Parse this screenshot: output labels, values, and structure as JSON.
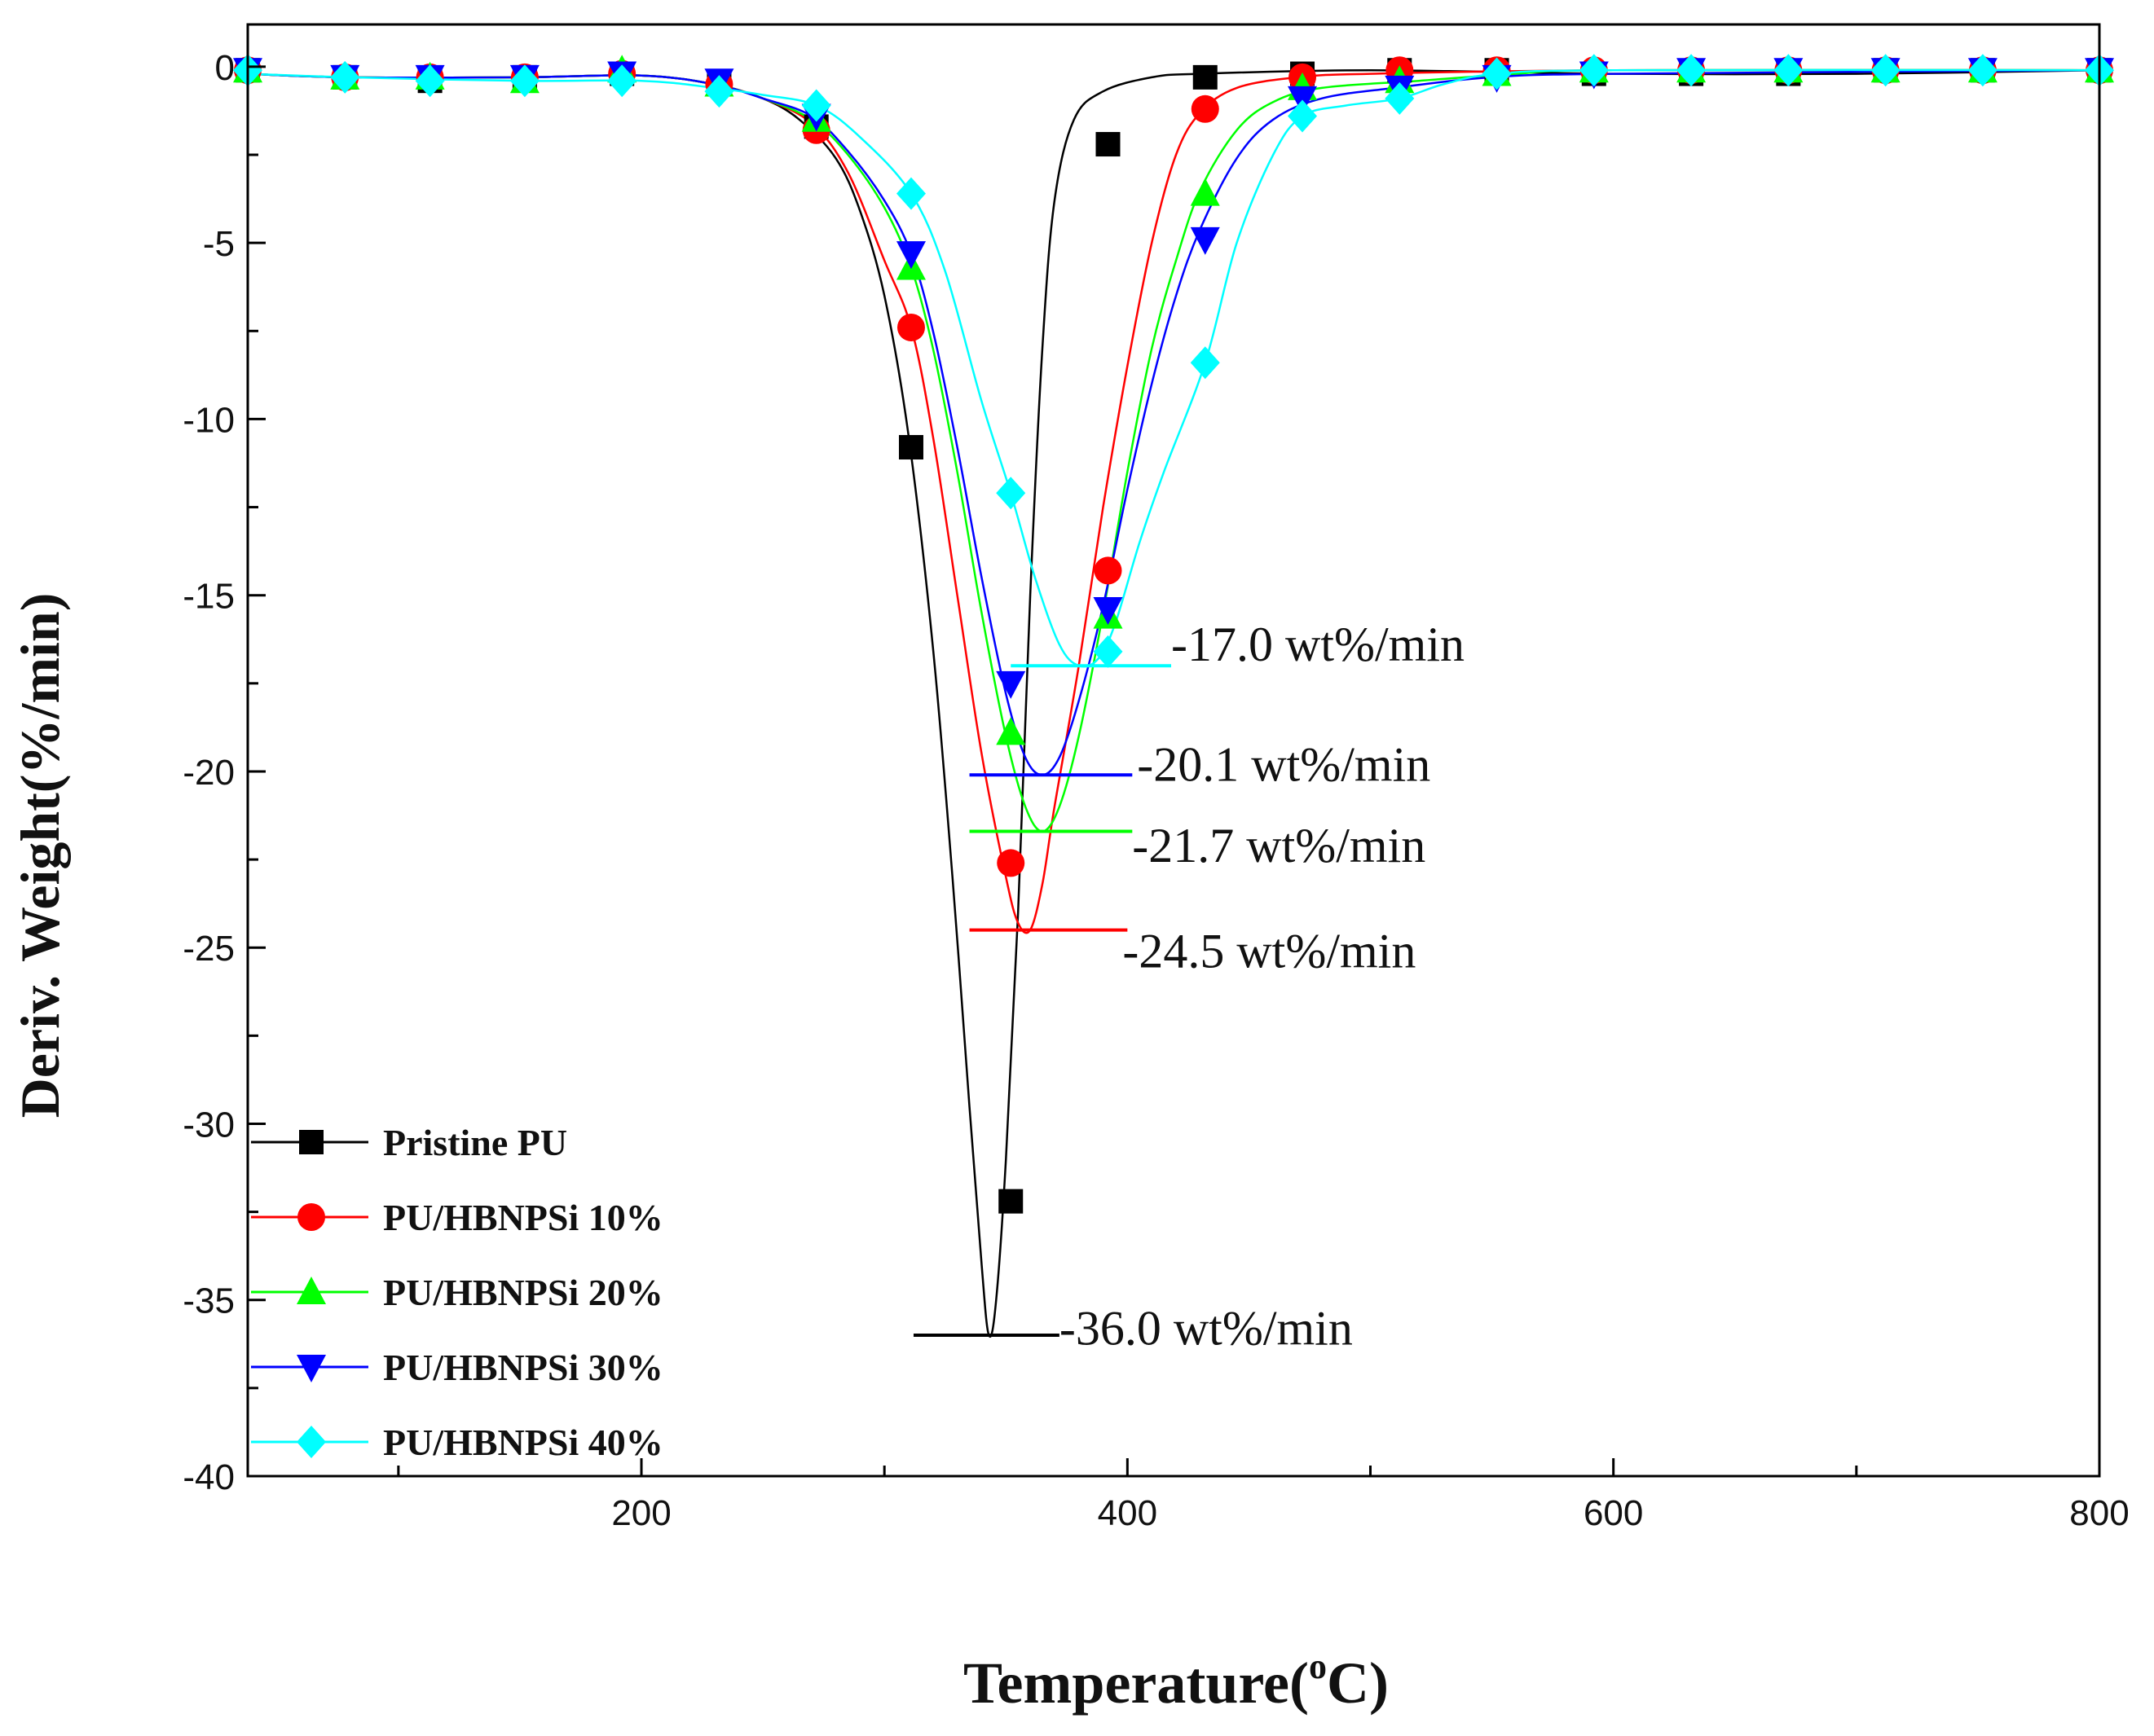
{
  "chart_data": {
    "type": "line",
    "xlabel": "Temperature(",
    "xlabel_sup": "o",
    "xlabel_unit": "C)",
    "ylabel": "Deriv. Weight(%/min)",
    "xlim": [
      38,
      800
    ],
    "ylim": [
      -40,
      1.2
    ],
    "x_ticks": [
      200,
      400,
      600,
      800
    ],
    "y_ticks": [
      0,
      -5,
      -10,
      -15,
      -20,
      -25,
      -30,
      -35,
      -40
    ],
    "x_tick_labels": [
      "200",
      "400",
      "600",
      "800"
    ],
    "y_tick_labels": [
      "0",
      "-5",
      "-10",
      "-15",
      "-20",
      "-25",
      "-30",
      "-35",
      "-40"
    ],
    "legend_position": "bottom-left",
    "series": [
      {
        "name": "Pristine PU",
        "color": "#000000",
        "marker": "square",
        "peak": {
          "x": 343,
          "y": -36.0
        },
        "curve": [
          [
            38,
            -0.2
          ],
          [
            80,
            -0.3
          ],
          [
            150,
            -0.3
          ],
          [
            200,
            -0.25
          ],
          [
            230,
            -0.5
          ],
          [
            250,
            -0.9
          ],
          [
            265,
            -1.5
          ],
          [
            280,
            -2.6
          ],
          [
            290,
            -4.1
          ],
          [
            300,
            -6.5
          ],
          [
            310,
            -10.5
          ],
          [
            320,
            -16.5
          ],
          [
            328,
            -23
          ],
          [
            335,
            -29.5
          ],
          [
            340,
            -34
          ],
          [
            343,
            -36
          ],
          [
            346,
            -35
          ],
          [
            350,
            -31
          ],
          [
            355,
            -24
          ],
          [
            360,
            -15
          ],
          [
            365,
            -8
          ],
          [
            370,
            -3.8
          ],
          [
            378,
            -1.5
          ],
          [
            390,
            -0.7
          ],
          [
            410,
            -0.3
          ],
          [
            430,
            -0.2
          ],
          [
            500,
            -0.1
          ],
          [
            600,
            -0.2
          ],
          [
            700,
            -0.2
          ],
          [
            800,
            -0.1
          ]
        ],
        "points": [
          [
            38,
            -0.1
          ],
          [
            78,
            -0.3
          ],
          [
            113,
            -0.4
          ],
          [
            152,
            -0.3
          ],
          [
            192,
            -0.2
          ],
          [
            232,
            -0.5
          ],
          [
            272,
            -1.7
          ],
          [
            311,
            -10.8
          ],
          [
            352,
            -32.2
          ],
          [
            392,
            -2.2
          ],
          [
            432,
            -0.3
          ],
          [
            472,
            -0.2
          ],
          [
            512,
            -0.1
          ],
          [
            552,
            -0.1
          ],
          [
            592,
            -0.2
          ],
          [
            632,
            -0.2
          ],
          [
            672,
            -0.2
          ],
          [
            712,
            -0.1
          ],
          [
            752,
            -0.1
          ],
          [
            800,
            -0.1
          ]
        ]
      },
      {
        "name": "PU/HBNPSi 10%",
        "color": "#ff0000",
        "marker": "circle",
        "peak": {
          "x": 360,
          "y": -24.5
        },
        "curve": [
          [
            38,
            -0.2
          ],
          [
            80,
            -0.3
          ],
          [
            150,
            -0.3
          ],
          [
            200,
            -0.25
          ],
          [
            230,
            -0.5
          ],
          [
            250,
            -0.9
          ],
          [
            270,
            -1.6
          ],
          [
            285,
            -3
          ],
          [
            300,
            -5.5
          ],
          [
            311,
            -7.4
          ],
          [
            320,
            -10.5
          ],
          [
            330,
            -15
          ],
          [
            340,
            -19.5
          ],
          [
            350,
            -23
          ],
          [
            355,
            -24.3
          ],
          [
            360,
            -24.5
          ],
          [
            365,
            -23.2
          ],
          [
            370,
            -21
          ],
          [
            380,
            -17
          ],
          [
            390,
            -12.5
          ],
          [
            400,
            -8.5
          ],
          [
            410,
            -5
          ],
          [
            420,
            -2.5
          ],
          [
            430,
            -1.3
          ],
          [
            445,
            -0.6
          ],
          [
            470,
            -0.3
          ],
          [
            500,
            -0.2
          ],
          [
            600,
            -0.1
          ],
          [
            800,
            -0.1
          ]
        ],
        "points": [
          [
            38,
            -0.1
          ],
          [
            78,
            -0.3
          ],
          [
            113,
            -0.3
          ],
          [
            152,
            -0.3
          ],
          [
            192,
            -0.2
          ],
          [
            232,
            -0.5
          ],
          [
            272,
            -1.8
          ],
          [
            311,
            -7.4
          ],
          [
            352,
            -22.6
          ],
          [
            392,
            -14.3
          ],
          [
            432,
            -1.2
          ],
          [
            472,
            -0.3
          ],
          [
            512,
            -0.1
          ],
          [
            552,
            -0.1
          ],
          [
            592,
            -0.1
          ],
          [
            632,
            -0.1
          ],
          [
            672,
            -0.1
          ],
          [
            712,
            -0.1
          ],
          [
            752,
            -0.1
          ],
          [
            800,
            -0.1
          ]
        ]
      },
      {
        "name": "PU/HBNPSi 20%",
        "color": "#00ff00",
        "marker": "triangle-up",
        "peak": {
          "x": 365,
          "y": -21.7
        },
        "curve": [
          [
            38,
            -0.2
          ],
          [
            80,
            -0.3
          ],
          [
            150,
            -0.3
          ],
          [
            200,
            -0.25
          ],
          [
            230,
            -0.5
          ],
          [
            250,
            -0.9
          ],
          [
            270,
            -1.5
          ],
          [
            285,
            -2.5
          ],
          [
            300,
            -4
          ],
          [
            311,
            -5.7
          ],
          [
            320,
            -8
          ],
          [
            330,
            -11.5
          ],
          [
            340,
            -15.5
          ],
          [
            350,
            -19
          ],
          [
            358,
            -21
          ],
          [
            365,
            -21.7
          ],
          [
            372,
            -21
          ],
          [
            380,
            -19
          ],
          [
            390,
            -15.5
          ],
          [
            400,
            -11.5
          ],
          [
            410,
            -8
          ],
          [
            420,
            -5.5
          ],
          [
            430,
            -3.5
          ],
          [
            445,
            -1.8
          ],
          [
            460,
            -1
          ],
          [
            480,
            -0.6
          ],
          [
            520,
            -0.4
          ],
          [
            560,
            -0.2
          ],
          [
            600,
            -0.1
          ],
          [
            800,
            -0.1
          ]
        ],
        "points": [
          [
            38,
            -0.1
          ],
          [
            78,
            -0.3
          ],
          [
            113,
            -0.3
          ],
          [
            152,
            -0.4
          ],
          [
            192,
            -0.1
          ],
          [
            232,
            -0.5
          ],
          [
            272,
            -1.5
          ],
          [
            311,
            -5.7
          ],
          [
            352,
            -18.9
          ],
          [
            392,
            -15.6
          ],
          [
            432,
            -3.6
          ],
          [
            472,
            -0.6
          ],
          [
            512,
            -0.4
          ],
          [
            552,
            -0.2
          ],
          [
            592,
            -0.1
          ],
          [
            632,
            -0.1
          ],
          [
            672,
            -0.1
          ],
          [
            712,
            -0.1
          ],
          [
            752,
            -0.1
          ],
          [
            800,
            -0.1
          ]
        ]
      },
      {
        "name": "PU/HBNPSi 30%",
        "color": "#0000ff",
        "marker": "triangle-down",
        "peak": {
          "x": 365,
          "y": -20.1
        },
        "curve": [
          [
            38,
            -0.2
          ],
          [
            80,
            -0.3
          ],
          [
            150,
            -0.3
          ],
          [
            200,
            -0.25
          ],
          [
            230,
            -0.5
          ],
          [
            250,
            -0.9
          ],
          [
            270,
            -1.4
          ],
          [
            285,
            -2.4
          ],
          [
            300,
            -3.8
          ],
          [
            311,
            -5.3
          ],
          [
            320,
            -7.5
          ],
          [
            330,
            -10.8
          ],
          [
            340,
            -14.5
          ],
          [
            350,
            -17.8
          ],
          [
            358,
            -19.6
          ],
          [
            365,
            -20.1
          ],
          [
            372,
            -19.6
          ],
          [
            380,
            -18
          ],
          [
            390,
            -15.3
          ],
          [
            400,
            -12
          ],
          [
            410,
            -9
          ],
          [
            420,
            -6.5
          ],
          [
            430,
            -4.6
          ],
          [
            445,
            -2.6
          ],
          [
            460,
            -1.5
          ],
          [
            480,
            -0.9
          ],
          [
            510,
            -0.6
          ],
          [
            550,
            -0.3
          ],
          [
            600,
            -0.2
          ],
          [
            800,
            -0.1
          ]
        ],
        "points": [
          [
            38,
            -0.1
          ],
          [
            78,
            -0.3
          ],
          [
            113,
            -0.3
          ],
          [
            152,
            -0.3
          ],
          [
            192,
            -0.2
          ],
          [
            232,
            -0.4
          ],
          [
            272,
            -1.4
          ],
          [
            311,
            -5.3
          ],
          [
            352,
            -17.5
          ],
          [
            392,
            -15.4
          ],
          [
            432,
            -4.9
          ],
          [
            472,
            -0.9
          ],
          [
            512,
            -0.6
          ],
          [
            552,
            -0.3
          ],
          [
            592,
            -0.2
          ],
          [
            632,
            -0.1
          ],
          [
            672,
            -0.1
          ],
          [
            712,
            -0.1
          ],
          [
            752,
            -0.1
          ],
          [
            800,
            -0.1
          ]
        ]
      },
      {
        "name": "PU/HBNPSi 40%",
        "color": "#00ffff",
        "marker": "diamond",
        "peak": {
          "x": 380,
          "y": -17.0
        },
        "curve": [
          [
            38,
            -0.2
          ],
          [
            80,
            -0.3
          ],
          [
            150,
            -0.4
          ],
          [
            200,
            -0.4
          ],
          [
            230,
            -0.6
          ],
          [
            250,
            -0.8
          ],
          [
            272,
            -1.1
          ],
          [
            290,
            -2
          ],
          [
            311,
            -3.6
          ],
          [
            325,
            -5.8
          ],
          [
            340,
            -9.5
          ],
          [
            352,
            -12.1
          ],
          [
            362,
            -14.5
          ],
          [
            372,
            -16.4
          ],
          [
            380,
            -17
          ],
          [
            388,
            -16.8
          ],
          [
            395,
            -15.8
          ],
          [
            405,
            -13.5
          ],
          [
            415,
            -11.5
          ],
          [
            432,
            -8.4
          ],
          [
            445,
            -5
          ],
          [
            460,
            -2.5
          ],
          [
            472,
            -1.4
          ],
          [
            490,
            -1.1
          ],
          [
            512,
            -0.9
          ],
          [
            530,
            -0.5
          ],
          [
            552,
            -0.2
          ],
          [
            600,
            -0.1
          ],
          [
            800,
            -0.1
          ]
        ],
        "points": [
          [
            38,
            -0.1
          ],
          [
            78,
            -0.3
          ],
          [
            113,
            -0.4
          ],
          [
            152,
            -0.4
          ],
          [
            192,
            -0.4
          ],
          [
            232,
            -0.7
          ],
          [
            272,
            -1.1
          ],
          [
            311,
            -3.6
          ],
          [
            352,
            -12.1
          ],
          [
            392,
            -16.6
          ],
          [
            432,
            -8.4
          ],
          [
            472,
            -1.4
          ],
          [
            512,
            -0.9
          ],
          [
            552,
            -0.2
          ],
          [
            592,
            -0.1
          ],
          [
            632,
            -0.1
          ],
          [
            672,
            -0.1
          ],
          [
            712,
            -0.1
          ],
          [
            752,
            -0.1
          ],
          [
            800,
            -0.1
          ]
        ]
      }
    ],
    "annotations": [
      {
        "text": "-17.0 wt%/min",
        "series": "PU/HBNPSi 40%",
        "y": -17.0,
        "line_x": [
          352,
          418
        ],
        "text_x": 418,
        "text_y": -16.4
      },
      {
        "text": "-20.1 wt%/min",
        "series": "PU/HBNPSi 30%",
        "y": -20.1,
        "line_x": [
          335,
          402
        ],
        "text_x": 404,
        "text_y": -19.8
      },
      {
        "text": "-21.7 wt%/min",
        "series": "PU/HBNPSi 20%",
        "y": -21.7,
        "line_x": [
          335,
          402
        ],
        "text_x": 402,
        "text_y": -22.1
      },
      {
        "text": "-24.5 wt%/min",
        "series": "PU/HBNPSi 10%",
        "y": -24.5,
        "line_x": [
          335,
          400
        ],
        "text_x": 398,
        "text_y": -25.1
      },
      {
        "text": "-36.0 wt%/min",
        "series": "Pristine PU",
        "y": -36.0,
        "line_x": [
          312,
          372
        ],
        "text_x": 372,
        "text_y": -35.8
      }
    ]
  }
}
